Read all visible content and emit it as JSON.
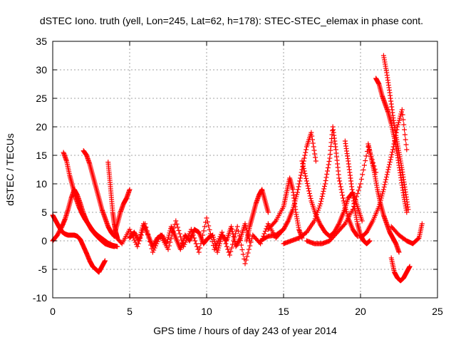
{
  "chart_data": {
    "type": "scatter",
    "title": "dSTEC Iono. truth (yell, Lon=245, Lat=62, h=178): STEC-STEC_elemax in phase cont.",
    "xlabel": "GPS time / hours of day 243 of year 2014",
    "ylabel": "dSTEC  / TECUs",
    "xlim": [
      0,
      25
    ],
    "ylim": [
      -10,
      35
    ],
    "xticks": [
      0,
      5,
      10,
      15,
      20,
      25
    ],
    "yticks": [
      -10,
      -5,
      0,
      5,
      10,
      15,
      20,
      25,
      30,
      35
    ],
    "grid": true,
    "legend": "none",
    "marker": "+",
    "color": "#ff0000",
    "series": [
      {
        "x": [
          0.0,
          0.2,
          0.4,
          0.6,
          0.8,
          1.0,
          1.2,
          1.4,
          1.6,
          1.8,
          2.0,
          2.2,
          2.4,
          2.6,
          2.8,
          3.0,
          3.2,
          3.4
        ],
        "y": [
          4.5,
          3.5,
          2.5,
          1.6,
          1.2,
          1.0,
          1.0,
          1.0,
          0.8,
          0.2,
          -1.0,
          -2.2,
          -3.5,
          -4.5,
          -5.0,
          -5.5,
          -4.5,
          -3.5
        ]
      },
      {
        "x": [
          0.0,
          0.3,
          0.6,
          0.8,
          1.0,
          1.2,
          1.4,
          1.6,
          1.8,
          2.0,
          2.2,
          2.5,
          2.8,
          3.1,
          3.4,
          3.7,
          4.0
        ],
        "y": [
          0.0,
          1.0,
          2.5,
          3.8,
          5.5,
          7.5,
          9.0,
          8.0,
          6.5,
          4.8,
          3.5,
          2.0,
          1.0,
          0.2,
          -0.5,
          -0.8,
          -1.0
        ]
      },
      {
        "x": [
          0.7,
          0.9,
          1.1,
          1.3,
          1.5,
          1.7,
          1.9,
          2.1,
          2.3,
          2.5,
          2.7,
          3.0,
          3.3,
          3.6,
          3.9,
          4.2
        ],
        "y": [
          15.5,
          14.0,
          11.5,
          9.5,
          7.5,
          6.0,
          4.8,
          3.8,
          3.0,
          2.2,
          1.5,
          0.8,
          0.2,
          -0.4,
          -0.8,
          -1.0
        ]
      },
      {
        "x": [
          2.0,
          2.2,
          2.4,
          2.6,
          2.8,
          3.0,
          3.2,
          3.4,
          3.6,
          3.8,
          4.0
        ],
        "y": [
          15.8,
          15.0,
          13.5,
          11.5,
          9.5,
          7.5,
          5.5,
          4.0,
          2.5,
          1.5,
          0.8
        ]
      },
      {
        "x": [
          3.6,
          3.7,
          3.8,
          3.9,
          4.0,
          4.1,
          4.2
        ],
        "y": [
          13.8,
          11.0,
          8.0,
          5.0,
          3.0,
          1.5,
          0.5
        ]
      },
      {
        "x": [
          4.0,
          4.2,
          4.4,
          4.6,
          4.8,
          5.0
        ],
        "y": [
          1.0,
          3.0,
          5.0,
          6.5,
          7.5,
          9.0
        ]
      },
      {
        "x": [
          4.0,
          4.5,
          5.0,
          5.5,
          6.0,
          6.5,
          7.0,
          7.5,
          8.0,
          8.5,
          9.0,
          9.5,
          10.0,
          10.5,
          11.0,
          11.5,
          12.0,
          12.5,
          13.0,
          13.5,
          14.0,
          14.5,
          15.0
        ],
        "y": [
          1.0,
          -0.5,
          2.0,
          -1.0,
          3.0,
          -2.0,
          1.0,
          -1.5,
          3.5,
          -1.0,
          2.0,
          -2.0,
          4.0,
          -1.5,
          1.5,
          -2.5,
          2.5,
          -4.0,
          1.0,
          -0.5,
          3.0,
          0.5,
          2.0
        ]
      },
      {
        "x": [
          5.0,
          5.3,
          5.6,
          5.9,
          6.2,
          6.5,
          6.8,
          7.1,
          7.4,
          7.7,
          8.0,
          8.3,
          8.6,
          8.9,
          9.2,
          9.5,
          9.8,
          10.1,
          10.4,
          10.7,
          11.0,
          11.3,
          11.6,
          11.9,
          12.2,
          12.5,
          12.8
        ],
        "y": [
          0.5,
          1.5,
          0.0,
          3.0,
          1.0,
          -1.0,
          0.5,
          1.0,
          -0.5,
          2.5,
          0.5,
          -1.5,
          1.0,
          0.0,
          2.0,
          1.5,
          -0.5,
          0.5,
          1.0,
          -2.0,
          1.0,
          0.0,
          2.5,
          -1.0,
          0.5,
          3.0,
          0.0
        ]
      },
      {
        "x": [
          12.6,
          12.8,
          13.0,
          13.2,
          13.4,
          13.6,
          13.8,
          14.0
        ],
        "y": [
          0.0,
          2.5,
          4.5,
          6.5,
          8.0,
          9.0,
          7.0,
          5.0
        ]
      },
      {
        "x": [
          13.5,
          14.0,
          14.5,
          15.0,
          15.3,
          15.6,
          15.9,
          16.2,
          16.5,
          16.8,
          17.1
        ],
        "y": [
          0.0,
          0.8,
          1.0,
          2.0,
          3.5,
          5.5,
          8.5,
          12.5,
          16.5,
          19.0,
          14.0
        ]
      },
      {
        "x": [
          14.0,
          14.5,
          15.0,
          15.2,
          15.4,
          15.6,
          15.8,
          16.0,
          16.2
        ],
        "y": [
          2.0,
          3.5,
          6.0,
          8.5,
          11.0,
          9.0,
          5.0,
          2.0,
          0.5
        ]
      },
      {
        "x": [
          15.0,
          15.5,
          16.0,
          16.5,
          17.0,
          17.4,
          17.7,
          18.0,
          18.2,
          18.4,
          18.6,
          18.9,
          19.2,
          19.5,
          19.8
        ],
        "y": [
          -0.5,
          0.0,
          0.5,
          1.5,
          3.5,
          6.5,
          10.0,
          14.5,
          20.0,
          16.0,
          11.0,
          7.0,
          4.0,
          2.0,
          0.8
        ]
      },
      {
        "x": [
          16.2,
          16.5,
          16.8,
          17.1,
          17.4,
          17.7,
          18.0,
          18.3,
          18.6,
          18.9,
          19.2,
          19.5,
          19.8,
          20.1
        ],
        "y": [
          14.0,
          10.5,
          7.0,
          4.5,
          2.8,
          1.5,
          0.8,
          1.5,
          3.0,
          5.0,
          7.5,
          8.5,
          6.0,
          3.5
        ]
      },
      {
        "x": [
          16.5,
          17.0,
          17.5,
          18.0,
          18.5,
          19.0,
          19.5,
          20.0,
          20.5,
          21.0
        ],
        "y": [
          0.0,
          -0.5,
          -0.5,
          0.0,
          1.5,
          3.0,
          5.5,
          10.0,
          16.5,
          12.0
        ]
      },
      {
        "x": [
          19.0,
          19.2,
          19.4,
          19.6,
          19.8,
          20.0,
          20.2,
          20.4,
          20.6
        ],
        "y": [
          17.5,
          14.0,
          10.0,
          6.0,
          3.0,
          1.0,
          0.0,
          -0.5,
          0.0
        ]
      },
      {
        "x": [
          20.0,
          20.4,
          20.8,
          21.2,
          21.5,
          21.8,
          22.1,
          22.4,
          22.7,
          23.0
        ],
        "y": [
          0.5,
          1.5,
          3.5,
          6.0,
          9.0,
          12.5,
          16.0,
          20.0,
          23.0,
          16.0
        ]
      },
      {
        "x": [
          20.5,
          20.7,
          20.9,
          21.1,
          21.3,
          21.5,
          21.7,
          21.9,
          22.1,
          22.3,
          22.5
        ],
        "y": [
          17.0,
          14.5,
          12.0,
          9.0,
          6.5,
          4.5,
          3.0,
          1.5,
          0.5,
          -0.5,
          -2.0
        ]
      },
      {
        "x": [
          21.0,
          21.2,
          21.4,
          21.6,
          21.8,
          22.0,
          22.2,
          22.4,
          22.6,
          22.8,
          23.0
        ],
        "y": [
          28.5,
          27.5,
          25.5,
          24.0,
          22.5,
          20.5,
          18.0,
          15.0,
          11.5,
          8.0,
          5.0
        ]
      },
      {
        "x": [
          21.5,
          21.7,
          21.9,
          22.1,
          22.3,
          22.5,
          22.7,
          22.9,
          23.1
        ],
        "y": [
          32.5,
          29.5,
          26.0,
          22.0,
          18.5,
          15.5,
          12.5,
          9.0,
          5.5
        ]
      },
      {
        "x": [
          22.0,
          22.2,
          22.4,
          22.6,
          22.8,
          23.0,
          23.2
        ],
        "y": [
          -3.0,
          -5.5,
          -6.5,
          -7.0,
          -6.5,
          -5.5,
          -4.5
        ]
      },
      {
        "x": [
          22.0,
          22.5,
          23.0,
          23.4,
          23.8,
          24.0
        ],
        "y": [
          2.5,
          1.0,
          0.0,
          -0.5,
          0.5,
          3.0
        ]
      }
    ]
  }
}
